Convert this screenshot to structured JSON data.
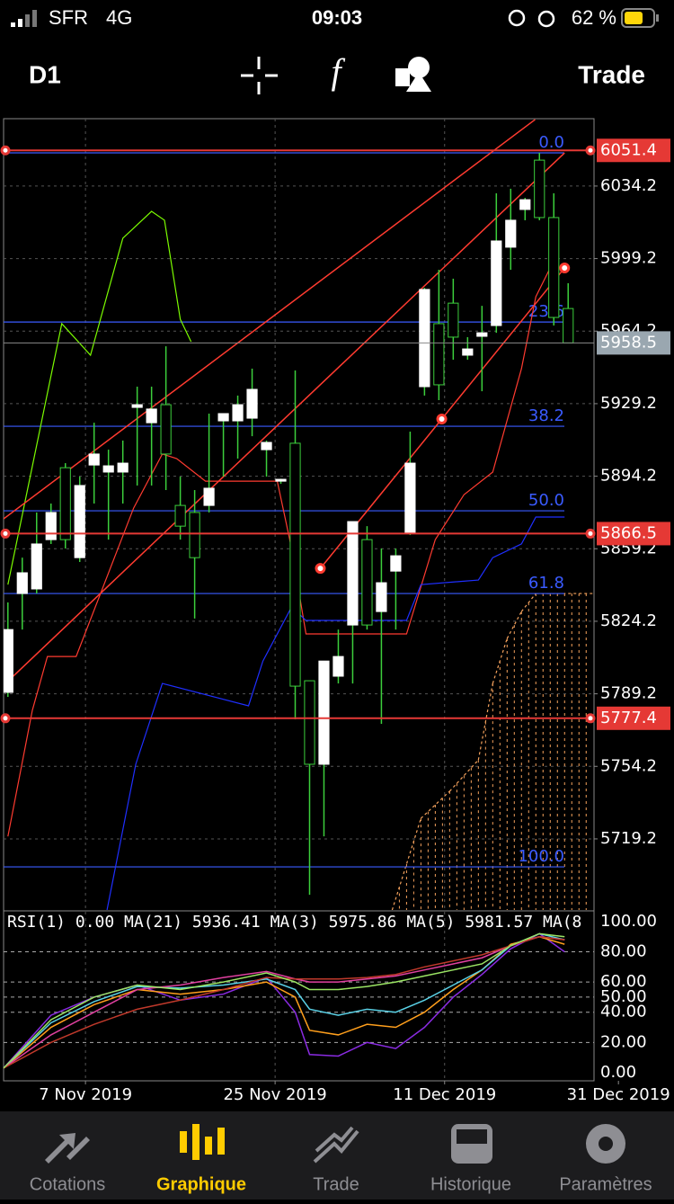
{
  "status_bar": {
    "carrier": "SFR",
    "network": "4G",
    "time": "09:03",
    "battery": "62 %"
  },
  "toolbar": {
    "timeframe": "D1",
    "action": "Trade"
  },
  "chart_data": {
    "type": "candlestick",
    "xlim": [
      -0.3,
      40.8
    ],
    "xticks": [
      {
        "value": 5.4,
        "label": "7 Nov 2019"
      },
      {
        "value": 18.6,
        "label": "25 Nov 2019"
      },
      {
        "value": 30.4,
        "label": "11 Dec 2019"
      },
      {
        "value": 42.5,
        "label": "31 Dec 2019"
      }
    ],
    "ylim": [
      5684.9,
      6066.7
    ],
    "yticks": [
      6034.2,
      5999.2,
      5964.2,
      5929.2,
      5894.2,
      5859.2,
      5824.2,
      5789.2,
      5754.2,
      5719.2
    ],
    "grid": true,
    "candles": {
      "open": [
        5789.9,
        5837.6,
        5839.8,
        5863.6,
        5898.3,
        5854.9,
        5899.6,
        5896.2,
        5896.2,
        5927.4,
        5920.0,
        5928.7,
        5880.1,
        5876.7,
        5880.1,
        5920.9,
        5920.9,
        5922.2,
        5907.0,
        5891.8,
        5910.1,
        5795.5,
        5755.2,
        5797.7,
        5822.4,
        5863.6,
        5828.9,
        5848.4,
        5866.7,
        5937.4,
        5967.8,
        5977.7,
        5952.6,
        5961.7,
        5966.9,
        6004.7,
        6022.9,
        6046.7,
        6019.0,
        5975.1
      ],
      "high": [
        5833.3,
        5854.9,
        5876.7,
        5881.0,
        5900.5,
        5894.0,
        5920.0,
        5907.0,
        5911.4,
        5937.4,
        5937.4,
        5956.9,
        5894.0,
        5887.5,
        5924.4,
        5924.4,
        5933.1,
        5946.1,
        5911.4,
        5893.0,
        5945.2,
        5795.5,
        5805.0,
        5820.2,
        5872.3,
        5870.1,
        5859.3,
        5859.3,
        5915.7,
        5985.1,
        5993.8,
        5989.5,
        5961.3,
        5976.4,
        6030.7,
        6032.9,
        6028.5,
        6050.2,
        6030.7,
        5987.3
      ],
      "low": [
        5787.7,
        5820.2,
        5837.6,
        5861.5,
        5859.3,
        5852.8,
        5881.0,
        5863.6,
        5881.0,
        5889.7,
        5889.7,
        5887.5,
        5863.6,
        5825.5,
        5876.7,
        5894.0,
        5902.7,
        5913.5,
        5894.0,
        5890.5,
        5776.9,
        5692.2,
        5720.4,
        5794.2,
        5794.2,
        5820.2,
        5774.7,
        5820.2,
        5865.8,
        5933.1,
        5930.9,
        5950.4,
        5950.4,
        5935.2,
        5963.4,
        5993.8,
        6017.7,
        6017.7,
        5966.9,
        5958.5
      ],
      "close": [
        5820.2,
        5847.6,
        5861.5,
        5876.7,
        5863.6,
        5889.7,
        5904.9,
        5899.2,
        5900.5,
        5928.7,
        5926.6,
        5904.9,
        5870.1,
        5854.9,
        5888.4,
        5924.4,
        5928.7,
        5936.1,
        5910.5,
        5892.7,
        5792.9,
        5755.2,
        5805.0,
        5807.2,
        5872.3,
        5822.4,
        5842.8,
        5855.8,
        5900.5,
        5984.3,
        5938.3,
        5961.3,
        5955.6,
        5963.4,
        6007.7,
        6017.7,
        6027.6,
        6019.0,
        5970.8,
        5958.5
      ]
    },
    "up_color": "#ffffff",
    "down_color": "#000000",
    "wick_color": "#3ccf3c",
    "indicators": [
      {
        "color": "#7cfc00",
        "x": [
          0,
          3.75,
          5.75,
          8,
          10,
          10.9,
          12,
          12.75
        ],
        "values": [
          5841.9,
          5967.8,
          5952.6,
          6009.0,
          6022.0,
          6017.7,
          5969.9,
          5959.1
        ]
      },
      {
        "color": "#ff3b30",
        "x": [
          0,
          1.7,
          2.75,
          4.75,
          8.75,
          10.75,
          11.75,
          13.75,
          18.75,
          19.75,
          20.75,
          27.75,
          29.75,
          31.75,
          33.75,
          35.75,
          36.75,
          37.75,
          38.75
        ],
        "values": [
          5720.4,
          5781.2,
          5807.2,
          5807.2,
          5878.8,
          5904.9,
          5902.7,
          5891.8,
          5891.8,
          5859.3,
          5818.1,
          5818.1,
          5863.6,
          5885.3,
          5896.2,
          5946.1,
          5980.8,
          5994.7,
          5994.7
        ]
      },
      {
        "color": "#1f2fff",
        "x": [
          6.9,
          8.9,
          10.75,
          16.75,
          17.75,
          19.75,
          20.75,
          27.75,
          28.75,
          32.75,
          33.75,
          35.75,
          36.75,
          38.75
        ],
        "values": [
          5684.9,
          5755.2,
          5794.2,
          5783.4,
          5805.0,
          5831.1,
          5824.6,
          5824.6,
          5841.9,
          5844.1,
          5854.9,
          5861.5,
          5874.5,
          5874.5
        ]
      }
    ],
    "cloud": {
      "color": "#f5a25d",
      "x": [
        26.75,
        28.75,
        30.75,
        32.75,
        33.75,
        34.75,
        35.75,
        36.75,
        40.75
      ],
      "values": [
        5684.9,
        5729.1,
        5742.2,
        5757.3,
        5794.2,
        5815.9,
        5828.9,
        5837.6,
        5837.6
      ]
    },
    "trendlines": [
      {
        "color": "#ff3b30",
        "x": [
          -0.3,
          36.7
        ],
        "values": [
          5873.6,
          6066.3
        ]
      },
      {
        "color": "#ff3b30",
        "x": [
          -0.3,
          38.75
        ],
        "values": [
          5793.3,
          6050.2
        ]
      },
      {
        "color": "#ff3b30",
        "x": [
          21.75,
          38.75
        ],
        "values": [
          5849.7,
          5994.7
        ]
      }
    ],
    "points": {
      "color": "#ff3b30",
      "x": [
        21.75,
        30.2,
        38.75
      ],
      "values": [
        5849.7,
        5921.8,
        5994.7
      ]
    },
    "hlines": [
      {
        "value": 6051.4,
        "color": "#e53935"
      },
      {
        "value": 5866.5,
        "color": "#e53935"
      },
      {
        "value": 5777.4,
        "color": "#e53935"
      }
    ],
    "current_price": {
      "value": 5958.5,
      "color": "#9aa7b0"
    },
    "fib_color": "#3a5bff",
    "fib_levels": [
      {
        "label": "0.0",
        "value": 6050.2
      },
      {
        "label": "23.6",
        "value": 5968.6
      },
      {
        "label": "38.2",
        "value": 5918.3
      },
      {
        "label": "50.0",
        "value": 5877.5
      },
      {
        "label": "61.8",
        "value": 5837.6
      },
      {
        "label": "100.0",
        "value": 5705.7
      }
    ]
  },
  "rsi_data": {
    "type": "line",
    "legend": "RSI(1) 0.00 MA(21) 5936.41 MA(3) 5975.86 MA(5) 5981.57 MA(8",
    "ylim": [
      -5.4,
      106.5
    ],
    "yticks": [
      {
        "value": 100,
        "label": "100.00"
      },
      {
        "value": 80,
        "label": "80.00"
      },
      {
        "value": 60,
        "label": "60.00"
      },
      {
        "value": 50,
        "label": "50.00"
      },
      {
        "value": 40,
        "label": "40.00"
      },
      {
        "value": 20,
        "label": "20.00"
      },
      {
        "value": 0,
        "label": "0.00"
      }
    ],
    "x": [
      -0.3,
      3,
      6,
      9,
      12,
      15,
      18,
      20,
      21,
      23,
      25,
      27,
      29,
      31,
      33,
      35,
      37,
      38.75
    ],
    "series": [
      {
        "color": "#8a2be2",
        "values": [
          3,
          38,
          50,
          58,
          48,
          52,
          63,
          40,
          12,
          11,
          20,
          16,
          30,
          50,
          65,
          82,
          92,
          80
        ]
      },
      {
        "color": "#ff9f1c",
        "values": [
          3,
          30,
          45,
          55,
          52,
          55,
          60,
          50,
          28,
          25,
          32,
          30,
          40,
          55,
          68,
          85,
          90,
          85
        ]
      },
      {
        "color": "#5ad1e6",
        "values": [
          3,
          33,
          47,
          57,
          56,
          58,
          62,
          55,
          42,
          38,
          42,
          40,
          48,
          58,
          68,
          84,
          92,
          88
        ]
      },
      {
        "color": "#e040a0",
        "values": [
          3,
          25,
          40,
          55,
          58,
          63,
          67,
          62,
          60,
          60,
          62,
          64,
          68,
          72,
          76,
          84,
          90,
          88
        ]
      },
      {
        "color": "#c0392b",
        "values": [
          3,
          20,
          32,
          42,
          48,
          55,
          63,
          62,
          62,
          62,
          63,
          65,
          70,
          74,
          78,
          84,
          90,
          88
        ]
      },
      {
        "color": "#9be564",
        "values": [
          3,
          35,
          50,
          58,
          55,
          60,
          66,
          60,
          55,
          55,
          57,
          60,
          64,
          68,
          72,
          84,
          92,
          90
        ]
      }
    ]
  },
  "nav": {
    "items": [
      "Cotations",
      "Graphique",
      "Trade",
      "Historique",
      "Paramètres"
    ],
    "active": 1
  }
}
